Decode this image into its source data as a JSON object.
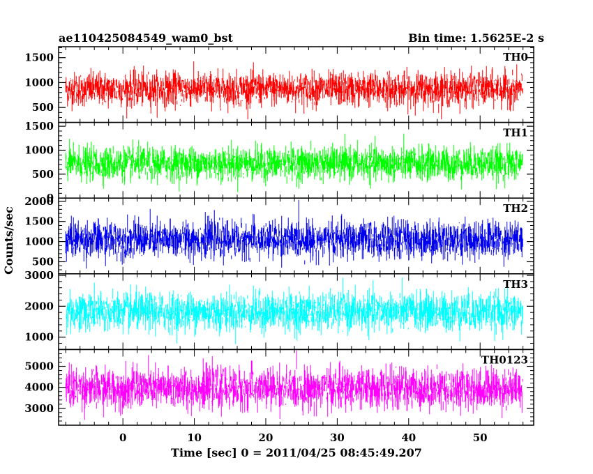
{
  "header": {
    "left_title": "ae110425084549_wam0_bst",
    "right_title": "Bin time: 1.5625E-2 s"
  },
  "chart_data": {
    "type": "line",
    "title": "ae110425084549_wam0_bst",
    "subtitle": "Bin time: 1.5625E-2 s",
    "xlabel": "Time [sec] 0 = 2011/04/25 08:45:49.207",
    "ylabel": "Counts/sec",
    "xlim": [
      -9,
      57.5
    ],
    "x_ticks": [
      0,
      10,
      20,
      30,
      40,
      50
    ],
    "x_tick_labels": [
      "0",
      "10",
      "20",
      "30",
      "40",
      "50"
    ],
    "data_x_range": [
      -8,
      56
    ],
    "bin_time": 0.015625,
    "grid": false,
    "panels": [
      {
        "name": "TH0",
        "color": "#ff0000",
        "ylim": [
          200,
          1720
        ],
        "y_ticks": [
          500,
          1000,
          1500
        ],
        "y_tick_labels": [
          "500",
          "1000",
          "1500"
        ],
        "mean": 870,
        "spread": 170,
        "min_clip": 260,
        "max_clip": 1700
      },
      {
        "name": "TH1",
        "color": "#00ff00",
        "ylim": [
          0,
          1580
        ],
        "y_ticks": [
          0,
          500,
          1000,
          1500
        ],
        "y_tick_labels": [
          "0",
          "500",
          "1000",
          "1500"
        ],
        "mean": 720,
        "spread": 175,
        "min_clip": 60,
        "max_clip": 1560
      },
      {
        "name": "TH2",
        "color": "#0000ee",
        "ylim": [
          200,
          2080
        ],
        "y_ticks": [
          500,
          1000,
          1500,
          2000
        ],
        "y_tick_labels": [
          "500",
          "1000",
          "1500",
          "2000"
        ],
        "mean": 1050,
        "spread": 230,
        "min_clip": 270,
        "max_clip": 2080
      },
      {
        "name": "TH3",
        "color": "#00ffff",
        "ylim": [
          600,
          3050
        ],
        "y_ticks": [
          1000,
          2000,
          3000
        ],
        "y_tick_labels": [
          "1000",
          "2000",
          "3000"
        ],
        "mean": 1820,
        "spread": 310,
        "min_clip": 760,
        "max_clip": 3050
      },
      {
        "name": "TH0123",
        "color": "#ff00ff",
        "ylim": [
          2200,
          5800
        ],
        "y_ticks": [
          3000,
          4000,
          5000
        ],
        "y_tick_labels": [
          "3000",
          "4000",
          "5000"
        ],
        "mean": 3950,
        "spread": 480,
        "min_clip": 2380,
        "max_clip": 5760
      }
    ]
  }
}
